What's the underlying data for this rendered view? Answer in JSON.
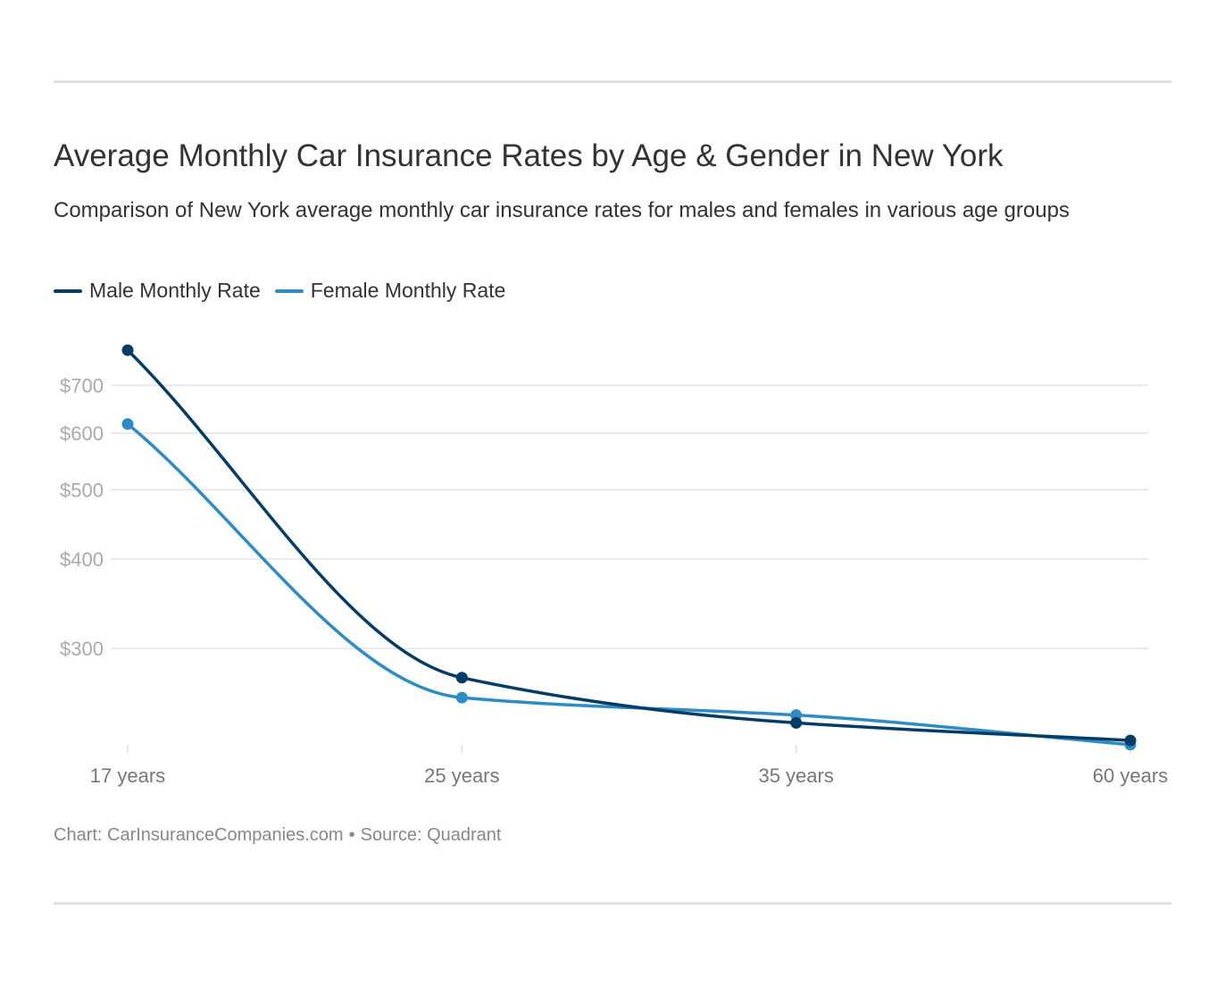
{
  "title": "Average Monthly Car Insurance Rates by Age & Gender in New York",
  "subtitle": "Comparison of New York average monthly car insurance rates for males and females in various age groups",
  "footer": {
    "chart": "Chart: CarInsuranceCompanies.com",
    "separator": "•",
    "source": "Source: Quadrant"
  },
  "chart_data": {
    "type": "line",
    "yscale": "log",
    "categories": [
      "17 years",
      "25 years",
      "35 years",
      "60 years"
    ],
    "yticks": [
      300,
      400,
      500,
      600,
      700
    ],
    "ytick_labels": [
      "$300",
      "$400",
      "$500",
      "$600",
      "$700"
    ],
    "grid": true,
    "legend_position": "top-left",
    "series": [
      {
        "name": "Male Monthly Rate",
        "color": "#053c66",
        "values": [
          784,
          273,
          236,
          223
        ]
      },
      {
        "name": "Female Monthly Rate",
        "color": "#2e8bc4",
        "values": [
          618,
          256,
          242,
          220
        ]
      }
    ]
  }
}
